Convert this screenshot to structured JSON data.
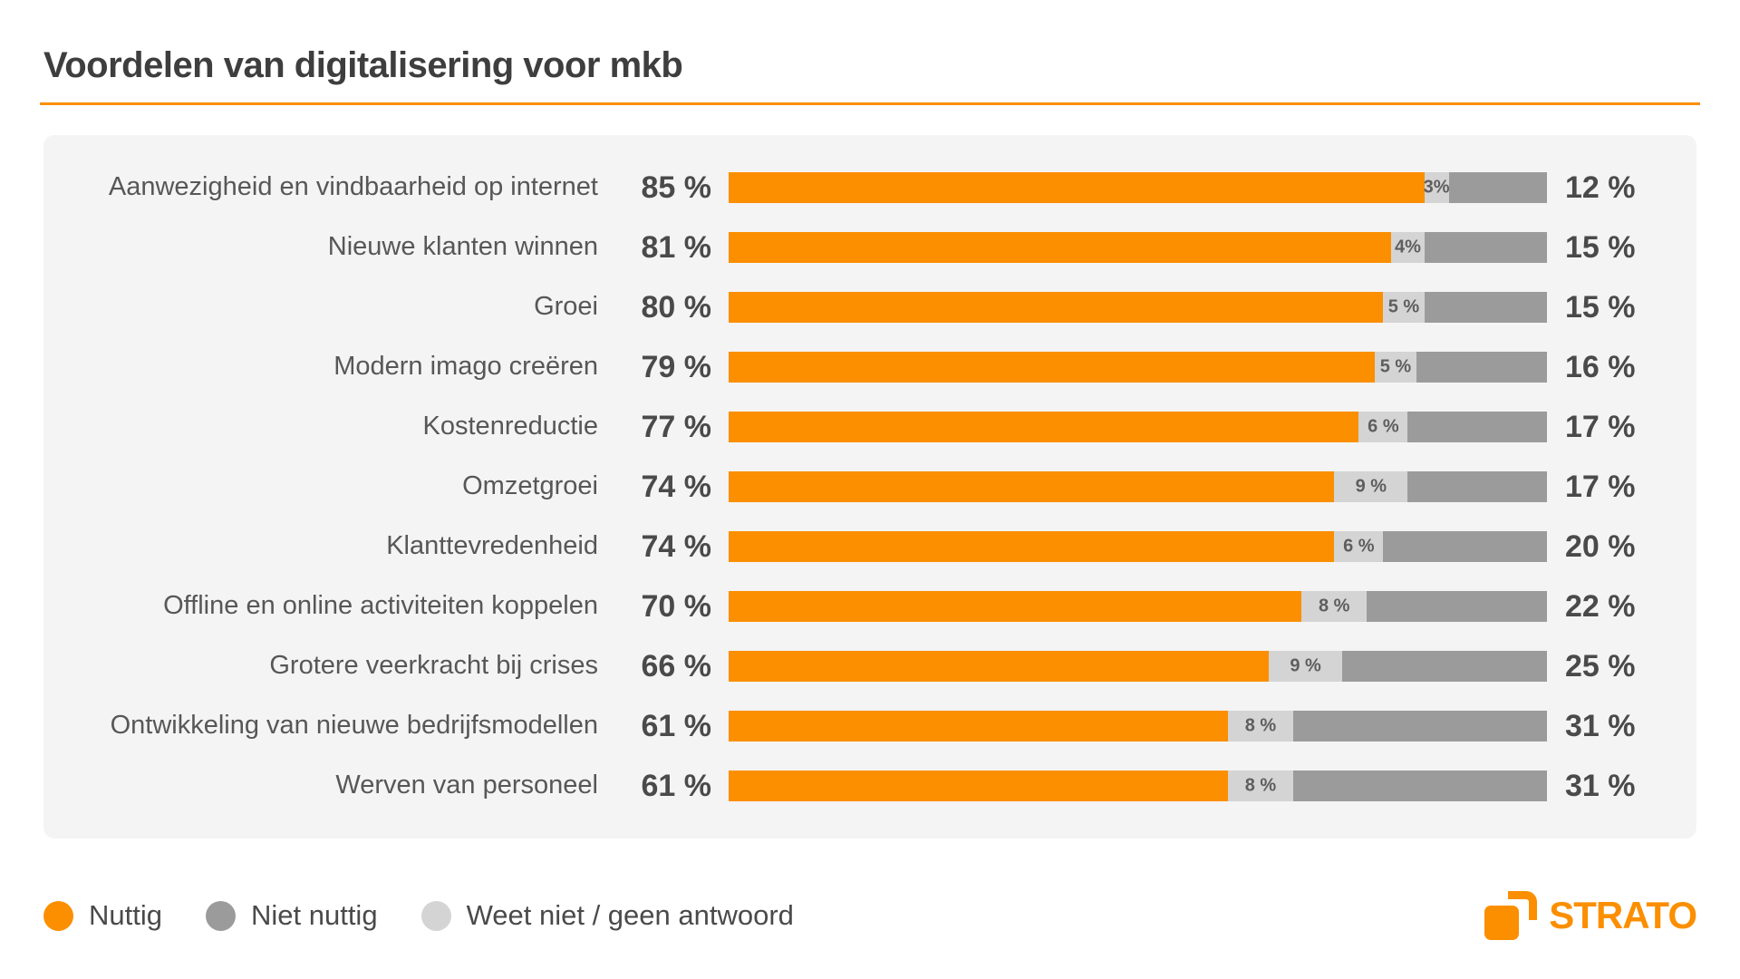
{
  "title": "Voordelen van digitalisering voor mkb",
  "colors": {
    "orange": "#FB8F00",
    "dark_gray": "#9B9B9B",
    "light_gray": "#D4D4D4",
    "card_bg": "#F4F4F4",
    "title_text": "#3E3E3E",
    "label_text": "#575757",
    "value_text": "#4A4A4A"
  },
  "chart_data": {
    "type": "bar",
    "orientation": "horizontal",
    "stacked": true,
    "title": "Voordelen van digitalisering voor mkb",
    "xlim": [
      0,
      100
    ],
    "value_unit": "%",
    "grid": false,
    "legend_position": "bottom",
    "segment_order_in_bar": [
      "Nuttig",
      "Weet niet / geen antwoord",
      "Niet nuttig"
    ],
    "categories": [
      "Aanwezigheid en vindbaarheid op internet",
      "Nieuwe klanten winnen",
      "Groei",
      "Modern imago creëren",
      "Kostenreductie",
      "Omzetgroei",
      "Klanttevredenheid",
      "Offline en online activiteiten koppelen",
      "Grotere veerkracht bij crises",
      "Ontwikkeling van nieuwe bedrijfsmodellen",
      "Werven van personeel"
    ],
    "series": [
      {
        "name": "Nuttig",
        "color": "#FB8F00",
        "values": [
          85,
          81,
          80,
          79,
          77,
          74,
          74,
          70,
          66,
          61,
          61
        ]
      },
      {
        "name": "Niet nuttig",
        "color": "#9B9B9B",
        "values": [
          12,
          15,
          15,
          16,
          17,
          17,
          20,
          22,
          25,
          31,
          31
        ]
      },
      {
        "name": "Weet niet / geen antwoord",
        "color": "#D4D4D4",
        "values": [
          3,
          4,
          5,
          5,
          6,
          9,
          6,
          8,
          9,
          8,
          8
        ]
      }
    ],
    "rows": [
      {
        "label": "Aanwezigheid en vindbaarheid op internet",
        "nuttig": 85,
        "weet_niet": 3,
        "niet_nuttig": 12,
        "left_label": "85 %",
        "mid_label": "3%",
        "right_label": "12 %"
      },
      {
        "label": "Nieuwe klanten winnen",
        "nuttig": 81,
        "weet_niet": 4,
        "niet_nuttig": 15,
        "left_label": "81 %",
        "mid_label": "4%",
        "right_label": "15 %"
      },
      {
        "label": "Groei",
        "nuttig": 80,
        "weet_niet": 5,
        "niet_nuttig": 15,
        "left_label": "80 %",
        "mid_label": "5 %",
        "right_label": "15 %"
      },
      {
        "label": "Modern imago creëren",
        "nuttig": 79,
        "weet_niet": 5,
        "niet_nuttig": 16,
        "left_label": "79 %",
        "mid_label": "5 %",
        "right_label": "16 %"
      },
      {
        "label": "Kostenreductie",
        "nuttig": 77,
        "weet_niet": 6,
        "niet_nuttig": 17,
        "left_label": "77 %",
        "mid_label": "6 %",
        "right_label": "17 %"
      },
      {
        "label": "Omzetgroei",
        "nuttig": 74,
        "weet_niet": 9,
        "niet_nuttig": 17,
        "left_label": "74 %",
        "mid_label": "9 %",
        "right_label": "17 %"
      },
      {
        "label": "Klanttevredenheid",
        "nuttig": 74,
        "weet_niet": 6,
        "niet_nuttig": 20,
        "left_label": "74 %",
        "mid_label": "6 %",
        "right_label": "20 %"
      },
      {
        "label": "Offline en online activiteiten koppelen",
        "nuttig": 70,
        "weet_niet": 8,
        "niet_nuttig": 22,
        "left_label": "70 %",
        "mid_label": "8 %",
        "right_label": "22 %"
      },
      {
        "label": "Grotere veerkracht bij crises",
        "nuttig": 66,
        "weet_niet": 9,
        "niet_nuttig": 25,
        "left_label": "66 %",
        "mid_label": "9 %",
        "right_label": "25 %"
      },
      {
        "label": "Ontwikkeling van nieuwe bedrijfsmodellen",
        "nuttig": 61,
        "weet_niet": 8,
        "niet_nuttig": 31,
        "left_label": "61 %",
        "mid_label": "8 %",
        "right_label": "31 %"
      },
      {
        "label": "Werven van personeel",
        "nuttig": 61,
        "weet_niet": 8,
        "niet_nuttig": 31,
        "left_label": "61 %",
        "mid_label": "8 %",
        "right_label": "31 %"
      }
    ]
  },
  "legend": {
    "items": [
      {
        "label": "Nuttig",
        "color": "#FB8F00"
      },
      {
        "label": "Niet nuttig",
        "color": "#9B9B9B"
      },
      {
        "label": "Weet niet / geen antwoord",
        "color": "#D4D4D4"
      }
    ]
  },
  "footer": {
    "brand": "STRATO"
  }
}
